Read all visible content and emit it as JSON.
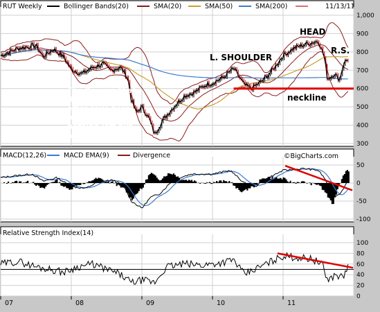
{
  "chart_data": [
    {
      "type": "line",
      "symbol": "RUT",
      "title": "RUT Weekly",
      "date": "11/13/11",
      "legend": [
        "Bollinger Bands(20)",
        "SMA(20)",
        "SMA(50)",
        "SMA(200)"
      ],
      "series_colors": {
        "price": "#000000",
        "bollinger": "#8b1a1a",
        "sma20": "#8b1a1a",
        "sma50": "#c8a030",
        "sma200": "#3a7ad0"
      },
      "xlabels": [
        "07",
        "08",
        "09",
        "10",
        "11"
      ],
      "ylim": [
        300,
        1000
      ],
      "yticks": [
        300,
        400,
        500,
        600,
        700,
        800,
        900,
        1000
      ],
      "yticklabels": [
        "300",
        "400",
        "500",
        "600",
        "700",
        "800",
        "900",
        "1,000"
      ],
      "close": [
        [
          2007.0,
          780
        ],
        [
          2007.25,
          820
        ],
        [
          2007.5,
          835
        ],
        [
          2007.6,
          775
        ],
        [
          2007.75,
          815
        ],
        [
          2007.9,
          770
        ],
        [
          2008.0,
          705
        ],
        [
          2008.15,
          680
        ],
        [
          2008.3,
          715
        ],
        [
          2008.45,
          735
        ],
        [
          2008.55,
          700
        ],
        [
          2008.7,
          715
        ],
        [
          2008.8,
          660
        ],
        [
          2008.85,
          540
        ],
        [
          2008.92,
          470
        ],
        [
          2009.0,
          500
        ],
        [
          2009.1,
          440
        ],
        [
          2009.18,
          350
        ],
        [
          2009.3,
          430
        ],
        [
          2009.45,
          500
        ],
        [
          2009.6,
          560
        ],
        [
          2009.75,
          580
        ],
        [
          2009.9,
          620
        ],
        [
          2010.0,
          630
        ],
        [
          2010.15,
          660
        ],
        [
          2010.3,
          710
        ],
        [
          2010.45,
          620
        ],
        [
          2010.55,
          600
        ],
        [
          2010.7,
          640
        ],
        [
          2010.85,
          700
        ],
        [
          2011.0,
          780
        ],
        [
          2011.15,
          820
        ],
        [
          2011.3,
          840
        ],
        [
          2011.4,
          850
        ],
        [
          2011.5,
          860
        ],
        [
          2011.58,
          780
        ],
        [
          2011.63,
          650
        ],
        [
          2011.72,
          680
        ],
        [
          2011.8,
          650
        ],
        [
          2011.86,
          740
        ],
        [
          2011.92,
          760
        ]
      ],
      "annotations": {
        "head": "HEAD",
        "left_shoulder": "L. SHOULDER",
        "right_shoulder": "R.S.",
        "neckline": "neckline",
        "neckline_level": 600,
        "note": [
          "The Powers That",
          "Be made save",
          "after save here,",
          "but now there's",
          "nothing left but",
          "words & rumors."
        ]
      }
    },
    {
      "type": "line",
      "title": "MACD(12,26)",
      "legend": [
        "MACD(12,26)",
        "MACD EMA(9)",
        "Divergence"
      ],
      "series_colors": {
        "macd": "#000000",
        "ema": "#3a7ad0",
        "divergence": "#000000"
      },
      "ylim": [
        -100,
        50
      ],
      "yticks": [
        50,
        0,
        -50,
        -100
      ],
      "yticklabels": [
        "50",
        "0",
        "-50",
        "-100"
      ],
      "watermark": "©BigCharts.com",
      "macd": [
        [
          2007.0,
          15
        ],
        [
          2007.2,
          20
        ],
        [
          2007.45,
          25
        ],
        [
          2007.6,
          5
        ],
        [
          2007.8,
          15
        ],
        [
          2008.0,
          -10
        ],
        [
          2008.2,
          -15
        ],
        [
          2008.4,
          5
        ],
        [
          2008.6,
          8
        ],
        [
          2008.75,
          -10
        ],
        [
          2008.85,
          -50
        ],
        [
          2009.0,
          -70
        ],
        [
          2009.12,
          -40
        ],
        [
          2009.25,
          -30
        ],
        [
          2009.45,
          10
        ],
        [
          2009.7,
          25
        ],
        [
          2010.0,
          25
        ],
        [
          2010.25,
          35
        ],
        [
          2010.45,
          0
        ],
        [
          2010.6,
          -10
        ],
        [
          2010.8,
          15
        ],
        [
          2011.0,
          35
        ],
        [
          2011.3,
          40
        ],
        [
          2011.5,
          35
        ],
        [
          2011.6,
          10
        ],
        [
          2011.7,
          -40
        ],
        [
          2011.8,
          -30
        ],
        [
          2011.92,
          5
        ]
      ],
      "trendline": [
        [
          2011.03,
          48
        ],
        [
          2011.98,
          -20
        ]
      ]
    },
    {
      "type": "line",
      "title": "Relative Strength Index(14)",
      "ylim": [
        0,
        100
      ],
      "yticks": [
        100,
        80,
        60,
        40,
        20,
        0
      ],
      "yticklabels": [
        "100",
        "80",
        "60",
        "40",
        "20",
        "0"
      ],
      "reference_line": 50,
      "rsi": [
        [
          2007.0,
          60
        ],
        [
          2007.25,
          65
        ],
        [
          2007.5,
          55
        ],
        [
          2007.7,
          50
        ],
        [
          2007.9,
          45
        ],
        [
          2008.1,
          55
        ],
        [
          2008.3,
          60
        ],
        [
          2008.5,
          50
        ],
        [
          2008.7,
          40
        ],
        [
          2008.85,
          25
        ],
        [
          2009.0,
          30
        ],
        [
          2009.18,
          25
        ],
        [
          2009.35,
          55
        ],
        [
          2009.6,
          60
        ],
        [
          2009.85,
          58
        ],
        [
          2010.1,
          62
        ],
        [
          2010.3,
          68
        ],
        [
          2010.45,
          40
        ],
        [
          2010.6,
          50
        ],
        [
          2010.85,
          66
        ],
        [
          2011.0,
          75
        ],
        [
          2011.2,
          72
        ],
        [
          2011.4,
          70
        ],
        [
          2011.55,
          60
        ],
        [
          2011.63,
          30
        ],
        [
          2011.75,
          40
        ],
        [
          2011.85,
          35
        ],
        [
          2011.92,
          55
        ]
      ],
      "trendline": [
        [
          2010.92,
          80
        ],
        [
          2011.99,
          53
        ]
      ]
    }
  ]
}
